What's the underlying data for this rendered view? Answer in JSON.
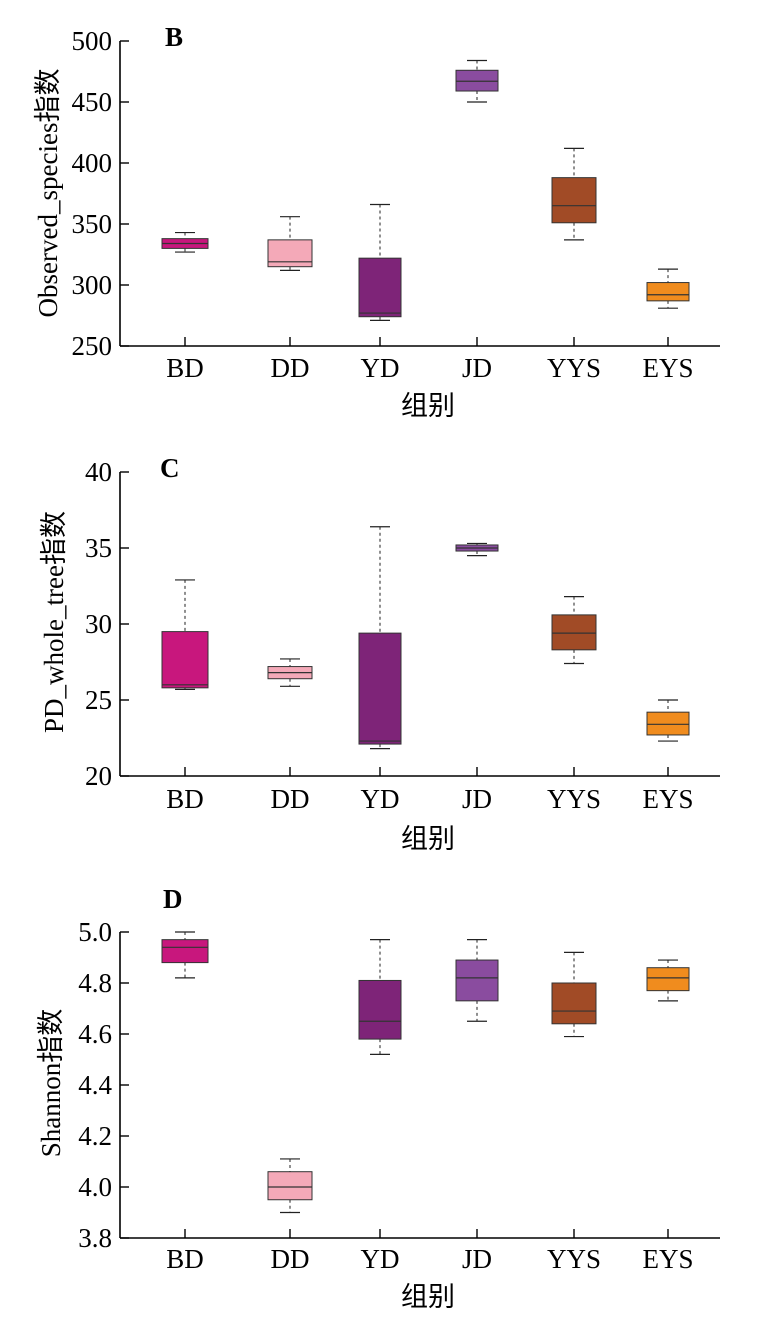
{
  "chart_data": [
    {
      "type": "boxplot",
      "panel_label": "B",
      "ylabel": "Observed_species指数",
      "xlabel": "组别",
      "categories": [
        "BD",
        "DD",
        "YD",
        "JD",
        "YYS",
        "EYS"
      ],
      "ylim": [
        250,
        500
      ],
      "yticks": [
        "250",
        "300",
        "350",
        "400",
        "450",
        "500"
      ],
      "tick_values": [
        250,
        300,
        350,
        400,
        450,
        500
      ],
      "boxes": [
        {
          "whisker_low": 327,
          "q1": 330,
          "median": 334,
          "q3": 338,
          "whisker_high": 343
        },
        {
          "whisker_low": 312,
          "q1": 315,
          "median": 319,
          "q3": 337,
          "whisker_high": 356
        },
        {
          "whisker_low": 271,
          "q1": 274,
          "median": 277,
          "q3": 322,
          "whisker_high": 366
        },
        {
          "whisker_low": 450,
          "q1": 459,
          "median": 467,
          "q3": 476,
          "whisker_high": 484
        },
        {
          "whisker_low": 337,
          "q1": 351,
          "median": 365,
          "q3": 388,
          "whisker_high": 412
        },
        {
          "whisker_low": 281,
          "q1": 287,
          "median": 292,
          "q3": 302,
          "whisker_high": 313
        }
      ]
    },
    {
      "type": "boxplot",
      "panel_label": "C",
      "ylabel": "PD_whole_tree指数",
      "xlabel": "组别",
      "categories": [
        "BD",
        "DD",
        "YD",
        "JD",
        "YYS",
        "EYS"
      ],
      "ylim": [
        20,
        40
      ],
      "yticks": [
        "20",
        "25",
        "30",
        "35",
        "40"
      ],
      "tick_values": [
        20,
        25,
        30,
        35,
        40
      ],
      "boxes": [
        {
          "whisker_low": 25.7,
          "q1": 25.8,
          "median": 26.0,
          "q3": 29.5,
          "whisker_high": 32.9
        },
        {
          "whisker_low": 25.9,
          "q1": 26.4,
          "median": 26.8,
          "q3": 27.2,
          "whisker_high": 27.7
        },
        {
          "whisker_low": 21.8,
          "q1": 22.1,
          "median": 22.3,
          "q3": 29.4,
          "whisker_high": 36.4
        },
        {
          "whisker_low": 34.5,
          "q1": 34.8,
          "median": 35.0,
          "q3": 35.2,
          "whisker_high": 35.3
        },
        {
          "whisker_low": 27.4,
          "q1": 28.3,
          "median": 29.4,
          "q3": 30.6,
          "whisker_high": 31.8
        },
        {
          "whisker_low": 22.3,
          "q1": 22.7,
          "median": 23.4,
          "q3": 24.2,
          "whisker_high": 25.0
        }
      ]
    },
    {
      "type": "boxplot",
      "panel_label": "D",
      "ylabel": "Shannon指数",
      "xlabel": "组别",
      "categories": [
        "BD",
        "DD",
        "YD",
        "JD",
        "YYS",
        "EYS"
      ],
      "ylim": [
        3.8,
        5.0
      ],
      "yticks": [
        "3.8",
        "4.0",
        "4.2",
        "4.4",
        "4.6",
        "4.8",
        "5.0"
      ],
      "tick_values": [
        3.8,
        4.0,
        4.2,
        4.4,
        4.6,
        4.8,
        5.0
      ],
      "boxes": [
        {
          "whisker_low": 4.82,
          "q1": 4.88,
          "median": 4.94,
          "q3": 4.97,
          "whisker_high": 5.0
        },
        {
          "whisker_low": 3.9,
          "q1": 3.95,
          "median": 4.0,
          "q3": 4.06,
          "whisker_high": 4.11
        },
        {
          "whisker_low": 4.52,
          "q1": 4.58,
          "median": 4.65,
          "q3": 4.81,
          "whisker_high": 4.97
        },
        {
          "whisker_low": 4.65,
          "q1": 4.73,
          "median": 4.82,
          "q3": 4.89,
          "whisker_high": 4.97
        },
        {
          "whisker_low": 4.59,
          "q1": 4.64,
          "median": 4.69,
          "q3": 4.8,
          "whisker_high": 4.92
        },
        {
          "whisker_low": 4.73,
          "q1": 4.77,
          "median": 4.82,
          "q3": 4.86,
          "whisker_high": 4.89
        }
      ]
    }
  ],
  "colors": {
    "BD": "#c8177d",
    "DD": "#f4a9b8",
    "YD": "#7e2478",
    "JD": "#8a4c9f",
    "YYS": "#a14b26",
    "EYS": "#f08c1e",
    "axis": "#000000"
  }
}
